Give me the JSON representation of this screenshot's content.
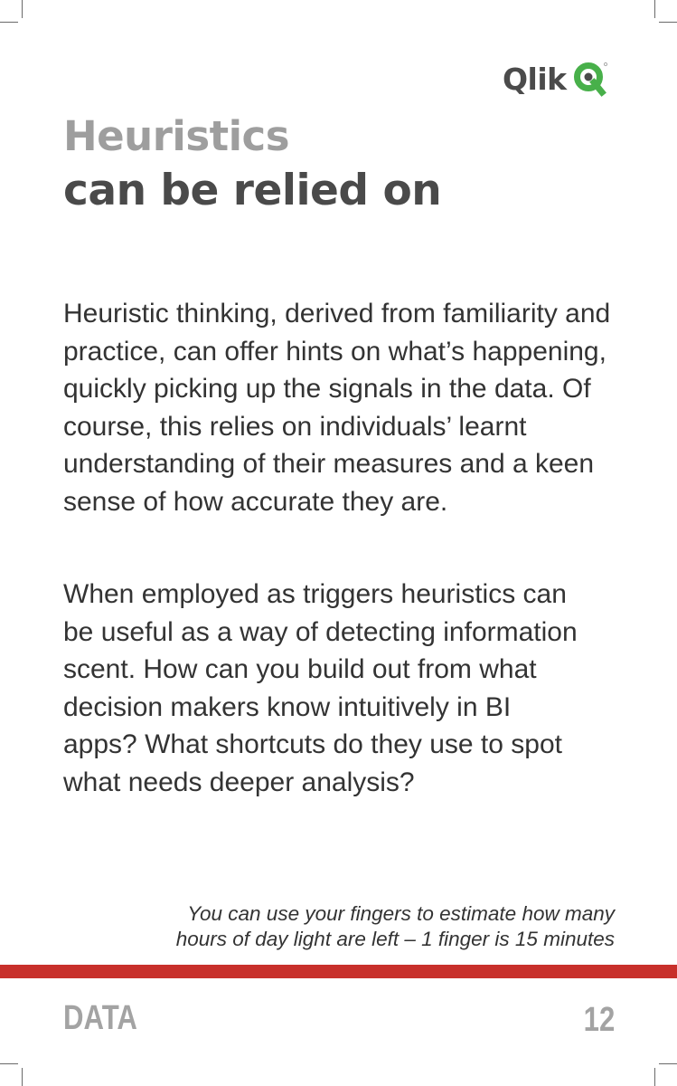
{
  "brand": {
    "name": "Qlik",
    "accent_color": "#48b04a",
    "icon": "qlik-q-logo-icon"
  },
  "title": {
    "line1": "Heuristics",
    "line2": "can be relied on"
  },
  "body": {
    "paragraph1": "Heuristic thinking, derived from familiarity and practice, can offer hints on what’s happening, quickly picking up the signals in the data. Of course, this relies on individuals’ learnt understanding of their measures and a keen sense of how accurate they are.",
    "paragraph2": "When employed as triggers heuristics can be useful as a way of detecting information scent. How can you build out from what decision makers know intuitively in BI apps? What shortcuts do they use to spot what needs deeper analysis?"
  },
  "note": {
    "line1": "You can use your fingers to estimate how many",
    "line2": "hours of day light are left – 1 finger is 15 minutes"
  },
  "footer": {
    "category": "DATA",
    "page_number": "12",
    "rule_color": "#c8302b"
  }
}
